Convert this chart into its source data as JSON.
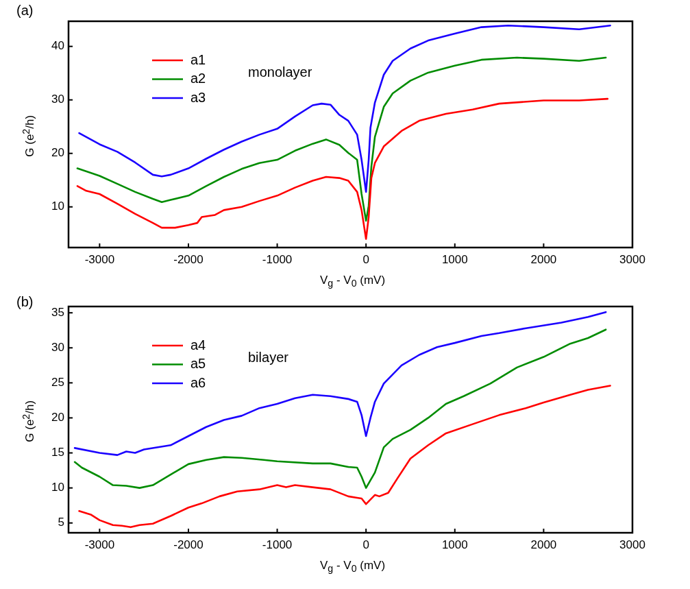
{
  "chart_data": [
    {
      "type": "line",
      "title": "(a)",
      "xlabel": "V$_{g}$ - V$_{0}$ (mV)",
      "ylabel": "G (e$^{2}$/h)",
      "annotations": [
        "monolayer"
      ],
      "xlim": [
        -3350,
        3000
      ],
      "xticks": [
        -3000,
        -2000,
        -1000,
        0,
        1000,
        2000,
        3000
      ],
      "ylim": [
        2.4,
        44.7
      ],
      "yticks": [
        10,
        20,
        30,
        40
      ],
      "grid": false,
      "legend": "top left",
      "marker": "none",
      "line_style": "solid",
      "series": [
        {
          "name": "a1",
          "color": "#ff0000",
          "x": [
            -3250,
            -3150,
            -3000,
            -2800,
            -2600,
            -2400,
            -2300,
            -2150,
            -2000,
            -1900,
            -1850,
            -1700,
            -1600,
            -1400,
            -1200,
            -1000,
            -800,
            -600,
            -450,
            -300,
            -200,
            -100,
            -50,
            0,
            30,
            60,
            100,
            200,
            400,
            600,
            900,
            1200,
            1500,
            2000,
            2400,
            2720
          ],
          "values": [
            13.9,
            13.0,
            12.4,
            10.6,
            8.7,
            7.0,
            6.1,
            6.1,
            6.6,
            7.0,
            8.1,
            8.5,
            9.4,
            10.0,
            11.1,
            12.1,
            13.6,
            14.9,
            15.6,
            15.4,
            14.9,
            12.8,
            9.4,
            4.0,
            8.1,
            15.4,
            18.2,
            21.3,
            24.2,
            26.1,
            27.4,
            28.2,
            29.3,
            29.9,
            29.9,
            30.2
          ]
        },
        {
          "name": "a2",
          "color": "#008c00",
          "x": [
            -3250,
            -3000,
            -2800,
            -2600,
            -2400,
            -2300,
            -2200,
            -2000,
            -1800,
            -1600,
            -1400,
            -1200,
            -1000,
            -800,
            -600,
            -450,
            -300,
            -200,
            -100,
            -50,
            0,
            30,
            60,
            100,
            200,
            300,
            500,
            700,
            1000,
            1300,
            1700,
            2000,
            2400,
            2700
          ],
          "values": [
            17.2,
            15.8,
            14.3,
            12.8,
            11.5,
            10.9,
            11.3,
            12.1,
            13.9,
            15.6,
            17.1,
            18.2,
            18.8,
            20.5,
            21.8,
            22.6,
            21.6,
            20.1,
            18.8,
            12.4,
            7.4,
            10.2,
            17.5,
            23.1,
            28.7,
            31.2,
            33.6,
            35.1,
            36.4,
            37.5,
            37.9,
            37.7,
            37.3,
            37.9
          ]
        },
        {
          "name": "a3",
          "color": "#1a00ff",
          "x": [
            -3230,
            -3000,
            -2800,
            -2600,
            -2400,
            -2300,
            -2200,
            -2000,
            -1800,
            -1600,
            -1400,
            -1200,
            -1000,
            -800,
            -600,
            -500,
            -400,
            -300,
            -200,
            -100,
            -50,
            0,
            30,
            50,
            100,
            200,
            300,
            500,
            700,
            1000,
            1300,
            1600,
            2000,
            2400,
            2750
          ],
          "values": [
            23.8,
            21.7,
            20.3,
            18.3,
            16.0,
            15.7,
            16.0,
            17.2,
            19.0,
            20.7,
            22.2,
            23.5,
            24.6,
            26.9,
            29.0,
            29.3,
            29.1,
            27.2,
            26.1,
            23.5,
            18.8,
            12.8,
            18.8,
            24.8,
            29.5,
            34.7,
            37.3,
            39.6,
            41.1,
            42.4,
            43.6,
            43.9,
            43.6,
            43.2,
            43.9
          ]
        }
      ]
    },
    {
      "type": "line",
      "title": "(b)",
      "xlabel": "V$_{g}$ - V$_{0}$ (mV)",
      "ylabel": "G (e$^{2}$/h)",
      "annotations": [
        "bilayer"
      ],
      "xlim": [
        -3350,
        3000
      ],
      "xticks": [
        -3000,
        -2000,
        -1000,
        0,
        1000,
        2000,
        3000
      ],
      "ylim": [
        3.6,
        35.9
      ],
      "yticks": [
        5,
        10,
        15,
        20,
        25,
        30,
        35
      ],
      "grid": false,
      "legend": "top left",
      "marker": "none",
      "line_style": "solid",
      "series": [
        {
          "name": "a4",
          "color": "#ff0000",
          "x": [
            -3230,
            -3100,
            -3000,
            -2850,
            -2750,
            -2650,
            -2550,
            -2400,
            -2200,
            -2000,
            -1850,
            -1650,
            -1450,
            -1200,
            -1000,
            -900,
            -800,
            -600,
            -400,
            -200,
            -100,
            -50,
            0,
            100,
            150,
            250,
            350,
            500,
            700,
            900,
            1200,
            1500,
            1800,
            2000,
            2300,
            2500,
            2750
          ],
          "values": [
            6.7,
            6.2,
            5.4,
            4.7,
            4.6,
            4.4,
            4.7,
            4.9,
            6.0,
            7.2,
            7.8,
            8.8,
            9.5,
            9.8,
            10.4,
            10.1,
            10.4,
            10.1,
            9.8,
            8.8,
            8.6,
            8.5,
            7.7,
            9.0,
            8.8,
            9.3,
            11.3,
            14.2,
            16.1,
            17.8,
            19.1,
            20.4,
            21.4,
            22.2,
            23.3,
            24.0,
            24.6
          ]
        },
        {
          "name": "a5",
          "color": "#008c00",
          "x": [
            -3280,
            -3200,
            -3000,
            -2850,
            -2700,
            -2550,
            -2400,
            -2200,
            -2000,
            -1800,
            -1600,
            -1400,
            -1150,
            -1000,
            -600,
            -400,
            -200,
            -100,
            -50,
            0,
            100,
            200,
            300,
            500,
            700,
            900,
            1100,
            1400,
            1700,
            2000,
            2300,
            2500,
            2700
          ],
          "values": [
            13.7,
            12.9,
            11.6,
            10.4,
            10.3,
            10.0,
            10.4,
            11.9,
            13.4,
            14.0,
            14.4,
            14.3,
            14.0,
            13.8,
            13.5,
            13.5,
            13.0,
            12.9,
            11.6,
            10.0,
            12.2,
            15.8,
            17.0,
            18.3,
            20.0,
            22.0,
            23.1,
            24.9,
            27.2,
            28.7,
            30.6,
            31.4,
            32.6
          ]
        },
        {
          "name": "a6",
          "color": "#1a00ff",
          "x": [
            -3280,
            -3000,
            -2800,
            -2700,
            -2600,
            -2500,
            -2200,
            -2000,
            -1800,
            -1600,
            -1400,
            -1200,
            -1000,
            -800,
            -600,
            -400,
            -200,
            -100,
            -50,
            0,
            50,
            100,
            200,
            400,
            600,
            800,
            1000,
            1300,
            1500,
            1800,
            2200,
            2500,
            2700
          ],
          "values": [
            15.7,
            15.0,
            14.7,
            15.2,
            15.0,
            15.5,
            16.1,
            17.4,
            18.7,
            19.7,
            20.3,
            21.4,
            22.0,
            22.8,
            23.3,
            23.1,
            22.7,
            22.3,
            20.4,
            17.4,
            20.0,
            22.3,
            24.9,
            27.5,
            29.0,
            30.1,
            30.7,
            31.7,
            32.1,
            32.8,
            33.6,
            34.4,
            35.1
          ]
        }
      ]
    }
  ]
}
